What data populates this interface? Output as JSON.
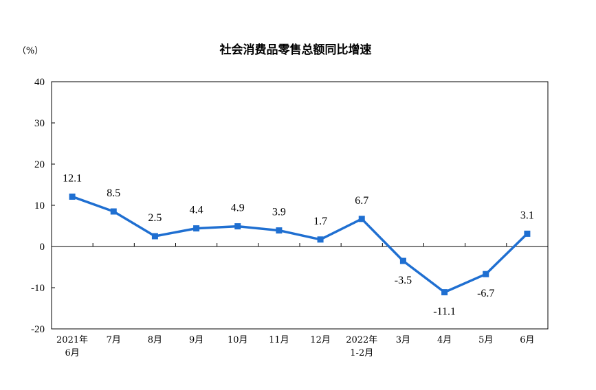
{
  "chart_data": {
    "type": "line",
    "title": "社会消费品零售总额同比增速",
    "unit_label": "（%）",
    "ylim": [
      -20,
      40
    ],
    "yticks": [
      40,
      30,
      20,
      10,
      0,
      -10,
      -20
    ],
    "categories": [
      [
        "2021年",
        "6月"
      ],
      [
        "7月"
      ],
      [
        "8月"
      ],
      [
        "9月"
      ],
      [
        "10月"
      ],
      [
        "11月"
      ],
      [
        "12月"
      ],
      [
        "2022年",
        "1-2月"
      ],
      [
        "3月"
      ],
      [
        "4月"
      ],
      [
        "5月"
      ],
      [
        "6月"
      ]
    ],
    "values": [
      12.1,
      8.5,
      2.5,
      4.4,
      4.9,
      3.9,
      1.7,
      6.7,
      -3.5,
      -11.1,
      -6.7,
      3.1
    ],
    "value_labels": [
      "12.1",
      "8.5",
      "2.5",
      "4.4",
      "4.9",
      "3.9",
      "1.7",
      "6.7",
      "-3.5",
      "-11.1",
      "-6.7",
      "3.1"
    ],
    "label_position": [
      "above",
      "above",
      "above",
      "above",
      "above",
      "above",
      "above",
      "above",
      "below",
      "below",
      "below",
      "above"
    ],
    "line_color": "#1f6fd1",
    "grid": false,
    "legend": "none"
  }
}
